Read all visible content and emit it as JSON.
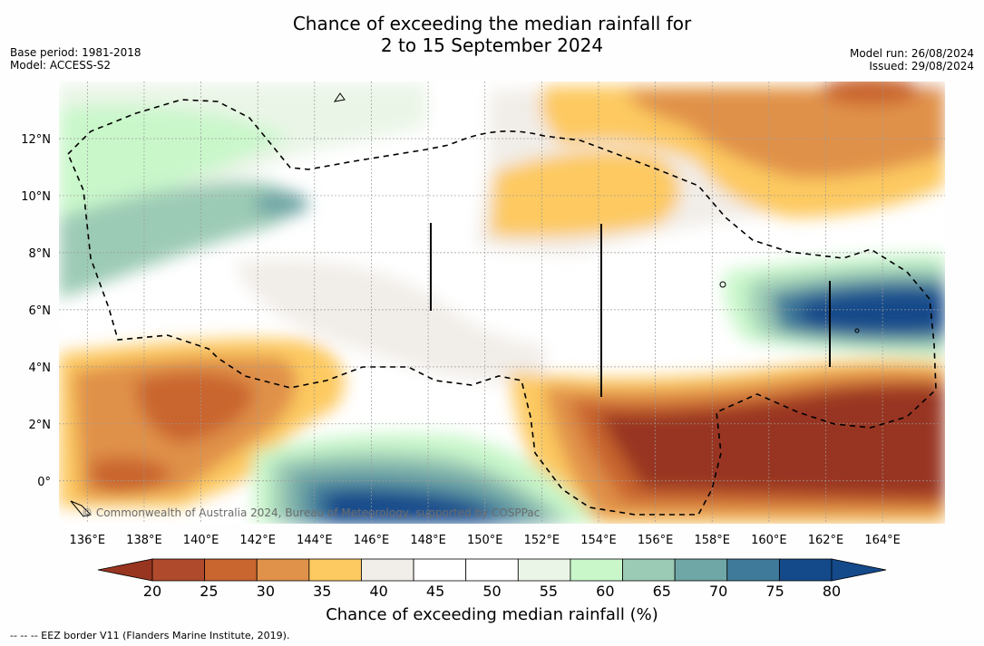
{
  "title": {
    "line1": "Chance of exceeding the median rainfall for",
    "line2": "2 to 15 September 2024"
  },
  "meta_left": {
    "base_period": "Base period: 1981-2018",
    "model": "Model: ACCESS-S2"
  },
  "meta_right": {
    "model_run": "Model run: 26/08/2024",
    "issued": "Issued: 29/08/2024"
  },
  "map": {
    "lon_range": [
      135,
      166.2
    ],
    "lat_range": [
      -1.5,
      14
    ],
    "lon_ticks": [
      "136°E",
      "138°E",
      "140°E",
      "142°E",
      "144°E",
      "146°E",
      "148°E",
      "150°E",
      "152°E",
      "154°E",
      "156°E",
      "158°E",
      "160°E",
      "162°E",
      "164°E"
    ],
    "lat_ticks": [
      "12°N",
      "10°N",
      "8°N",
      "6°N",
      "4°N",
      "2°N",
      "0°"
    ],
    "copyright": "© Commonwealth of Australia 2024, Bureau of Meteorology, supported by COSPPac"
  },
  "colorbar": {
    "ticks": [
      "20",
      "25",
      "30",
      "35",
      "40",
      "45",
      "50",
      "55",
      "60",
      "65",
      "70",
      "75",
      "80"
    ],
    "colors": [
      "#b04a2c",
      "#c9652f",
      "#e0914a",
      "#fdc961",
      "#f1ede8",
      "#ffffff",
      "#ffffff",
      "#eaf5e7",
      "#c9f7ca",
      "#9ccbb5",
      "#6fa6a6",
      "#407a9a",
      "#14498a"
    ],
    "low_color": "#983520",
    "high_color": "#14498a",
    "title": "Chance of exceeding median rainfall (%)"
  },
  "footer": "--  --  -- EEZ border V11 (Flanders Marine Institute, 2019)."
}
